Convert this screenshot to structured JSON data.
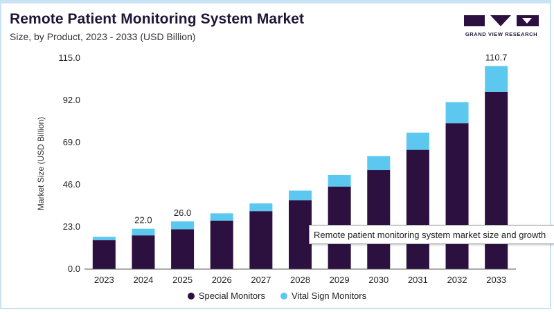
{
  "header": {
    "title": "Remote Patient Monitoring System Market",
    "subtitle": "Size, by Product, 2023 - 2033 (USD Billion)",
    "brand": "GRAND VIEW RESEARCH"
  },
  "colors": {
    "special": "#2b1040",
    "vital": "#5cc8f0",
    "brand": "#2b1040",
    "axis": "#333333"
  },
  "tooltip": {
    "text": "Remote patient monitoring system market size and growth"
  },
  "chart_data": {
    "type": "bar",
    "stacked": true,
    "categories": [
      "2023",
      "2024",
      "2025",
      "2026",
      "2027",
      "2028",
      "2029",
      "2030",
      "2031",
      "2032",
      "2033"
    ],
    "series": [
      {
        "name": "Special Monitors",
        "values": [
          15.8,
          18.4,
          21.7,
          26.4,
          31.6,
          37.6,
          45.0,
          54.0,
          65.0,
          79.5,
          96.6
        ]
      },
      {
        "name": "Vital Sign Monitors",
        "values": [
          1.8,
          3.6,
          4.3,
          4.0,
          4.2,
          5.2,
          6.3,
          7.6,
          9.4,
          11.5,
          14.1
        ]
      }
    ],
    "data_labels": [
      {
        "category": "2024",
        "text": "22.0"
      },
      {
        "category": "2025",
        "text": "26.0"
      },
      {
        "category": "2033",
        "text": "110.7"
      }
    ],
    "ylabel": "Market Size (USD Billion)",
    "xlabel": "",
    "ylim": [
      0,
      115
    ],
    "yticks": [
      "0.0",
      "23.0",
      "46.0",
      "69.0",
      "92.0",
      "115.0"
    ],
    "grid": false,
    "legend_position": "bottom-center"
  }
}
